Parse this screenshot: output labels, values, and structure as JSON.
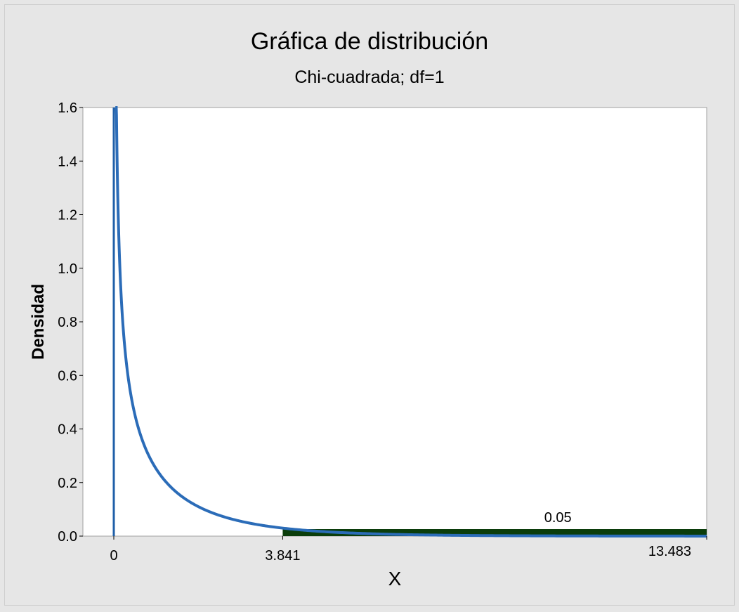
{
  "chart_data": {
    "type": "area",
    "title": "Gráfica de distribución",
    "subtitle": "Chi-cuadrada; df=1",
    "xlabel": "X",
    "ylabel": "Densidad",
    "distribution": "chi-square",
    "df": 1,
    "xlim": [
      0,
      13.483
    ],
    "ylim": [
      0,
      1.6
    ],
    "y_ticks": [
      "0.0",
      "0.2",
      "0.4",
      "0.6",
      "0.8",
      "1.0",
      "1.2",
      "1.4",
      "1.6"
    ],
    "x_marks": [
      {
        "value": 0,
        "label": "0"
      },
      {
        "value": 3.841,
        "label": "3.841"
      },
      {
        "value": 13.483,
        "label": "13.483"
      }
    ],
    "shaded_region": {
      "from": 3.841,
      "to": 13.483,
      "probability_label": "0.05",
      "color": "#0b3d0b"
    },
    "curve_color": "#2b6cb8",
    "reference_line": {
      "x": 0,
      "color": "#1f5fa8"
    },
    "grid": false
  }
}
